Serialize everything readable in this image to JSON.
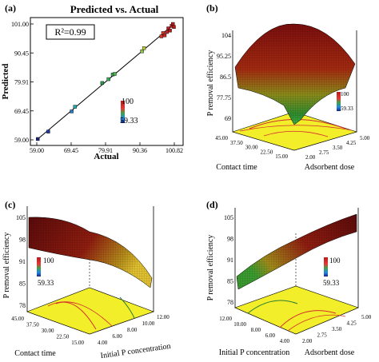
{
  "chart_data": [
    {
      "panel": "(a)",
      "type": "scatter",
      "title": "Predicted vs. Actual",
      "xlabel": "Actual",
      "ylabel": "Predicted",
      "annotation": "R²=0.99",
      "x_ticks": [
        "59.00",
        "69.45",
        "79.91",
        "90.36",
        "100.82"
      ],
      "y_ticks": [
        "59.00",
        "69.45",
        "79.91",
        "90.45",
        "101.00"
      ],
      "xlim": [
        59.0,
        100.82
      ],
      "ylim": [
        59.0,
        101.0
      ],
      "legend_high": "100",
      "legend_low": "59.33",
      "fit_line": [
        [
          59.0,
          59.0
        ],
        [
          100.82,
          101.0
        ]
      ],
      "points": [
        {
          "x": 59.3,
          "y": 59.3,
          "color": "#1a237e"
        },
        {
          "x": 62.5,
          "y": 62.0,
          "color": "#1e3c9f"
        },
        {
          "x": 69.6,
          "y": 69.3,
          "color": "#2a7ac0"
        },
        {
          "x": 70.6,
          "y": 71.0,
          "color": "#26a6a6"
        },
        {
          "x": 78.9,
          "y": 79.6,
          "color": "#2a9a55"
        },
        {
          "x": 80.8,
          "y": 81.0,
          "color": "#3aa85a"
        },
        {
          "x": 82.1,
          "y": 82.7,
          "color": "#3aa85a"
        },
        {
          "x": 82.7,
          "y": 82.9,
          "color": "#4cb050"
        },
        {
          "x": 91.0,
          "y": 91.1,
          "color": "#8bc34a"
        },
        {
          "x": 91.6,
          "y": 92.2,
          "color": "#b5c23a"
        },
        {
          "x": 96.9,
          "y": 96.5,
          "color": "#d43a2a"
        },
        {
          "x": 97.4,
          "y": 97.7,
          "color": "#d43a2a"
        },
        {
          "x": 97.9,
          "y": 96.9,
          "color": "#c62828"
        },
        {
          "x": 98.6,
          "y": 98.1,
          "color": "#c62828"
        },
        {
          "x": 99.0,
          "y": 99.4,
          "color": "#b71c1c"
        },
        {
          "x": 99.5,
          "y": 98.6,
          "color": "#b71c1c"
        },
        {
          "x": 100.0,
          "y": 100.3,
          "color": "#b71c1c"
        },
        {
          "x": 100.4,
          "y": 101.0,
          "color": "#b71c1c"
        },
        {
          "x": 100.7,
          "y": 99.9,
          "color": "#b71c1c"
        }
      ]
    },
    {
      "panel": "(b)",
      "type": "surface",
      "zlabel": "P removal efficiency",
      "z_ticks": [
        "69",
        "77.75",
        "86.5",
        "95.25",
        "104"
      ],
      "xlabel": "Contact time",
      "x_ticks": [
        "15.00",
        "22.50",
        "30.00",
        "37.50",
        "45.00"
      ],
      "ylabel": "Adsorbent dose",
      "y_ticks": [
        "2.00",
        "2.75",
        "3.50",
        "4.25",
        "5.00"
      ],
      "legend_high": "100",
      "legend_low": "59.33"
    },
    {
      "panel": "(c)",
      "type": "surface",
      "zlabel": "P removal efficiency",
      "z_ticks": [
        "78",
        "85",
        "91",
        "98",
        "105"
      ],
      "xlabel": "Contact time",
      "x_ticks": [
        "15.00",
        "22.50",
        "30.00",
        "37.50",
        "45.00"
      ],
      "ylabel": "Initial P concentration",
      "y_ticks": [
        "4.00",
        "6.00",
        "8.00",
        "10.00",
        "12.00"
      ],
      "legend_high": "100",
      "legend_low": "59.33"
    },
    {
      "panel": "(d)",
      "type": "surface",
      "zlabel": "P removal efficiency",
      "z_ticks": [
        "78",
        "85",
        "91",
        "98",
        "105"
      ],
      "xlabel": "Initial P concentration",
      "x_ticks": [
        "4.00",
        "6.00",
        "8.00",
        "10.00",
        "12.00"
      ],
      "ylabel": "Adsorbent dose",
      "y_ticks": [
        "2.00",
        "2.75",
        "3.50",
        "4.25",
        "5.00"
      ],
      "legend_high": "100",
      "legend_low": "59.33"
    }
  ]
}
